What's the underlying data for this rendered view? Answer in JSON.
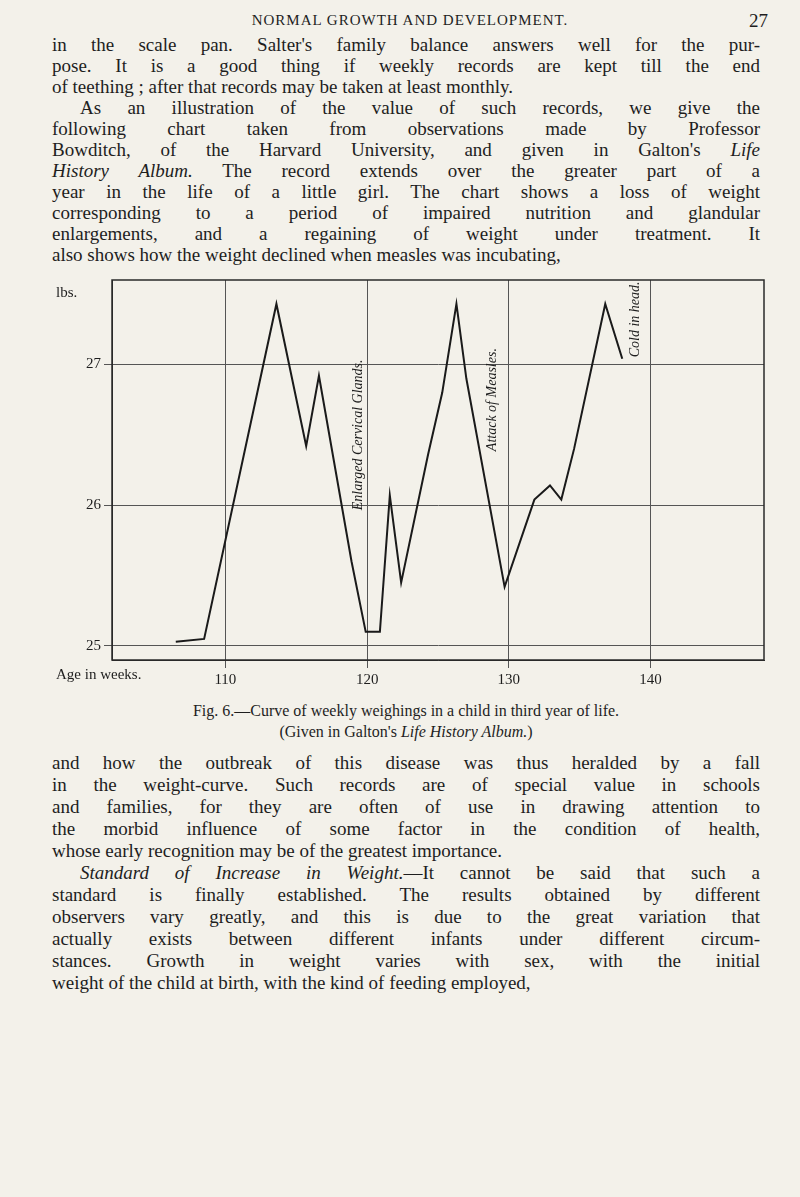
{
  "header": {
    "title": "NORMAL GROWTH AND DEVELOPMENT.",
    "page": "27"
  },
  "text_before": [
    [
      [
        "in the scale pan. Salter's family balance answers well for the pur-"
      ],
      [
        "pose. It is a good thing if weekly records are kept till the end"
      ],
      [
        "of teething ; after that records may be taken at least monthly."
      ]
    ],
    [
      [
        "As an illustration of the value of such records, we give the"
      ],
      [
        "following chart taken from observations made by Professor"
      ],
      [
        "Bowditch, of the Harvard University, and given in Galton's ",
        {
          "italic": "Life"
        }
      ],
      [
        {
          "italic": "History Album."
        },
        " The record extends over the greater part of a"
      ],
      [
        "year in the life of a little girl. The chart shows a loss of weight"
      ],
      [
        "corresponding to a period of impaired nutrition and glandular"
      ],
      [
        "enlargements, and a regaining of weight under treatment. It"
      ],
      [
        "also shows how the weight declined when measles was incubating,"
      ]
    ]
  ],
  "chart_data": {
    "type": "line",
    "y_label": "lbs.",
    "x_label": "Age in weeks.",
    "x": [
      106.5,
      108.5,
      113.6,
      115.7,
      116.6,
      118.9,
      119.9,
      120.9,
      121.6,
      122.4,
      124.3,
      125.3,
      126.3,
      127.0,
      129.7,
      131.8,
      132.9,
      133.7,
      134.6,
      136.8,
      138.0
    ],
    "values": [
      25.03,
      25.05,
      27.43,
      26.42,
      26.92,
      25.6,
      25.1,
      25.1,
      26.07,
      25.45,
      26.36,
      26.8,
      27.43,
      26.9,
      25.42,
      26.04,
      26.14,
      26.04,
      26.4,
      27.43,
      27.04
    ],
    "color": "#1a1a1a",
    "xlim": [
      102,
      148
    ],
    "xticks": [
      110,
      120,
      130,
      140
    ],
    "ylim": [
      24.9,
      27.6
    ],
    "yticks": [
      25,
      26,
      27
    ],
    "grid": true,
    "annotations": [
      {
        "text": "Enlarged Cervical Glands.",
        "x": 119.4,
        "y": 26.5
      },
      {
        "text": "Attack of Measles.",
        "x": 128.8,
        "y": 26.75
      },
      {
        "text": "Cold in head.",
        "x": 138.9,
        "y": 27.32
      }
    ]
  },
  "caption": [
    [
      "Fig. 6.—Curve of weekly weighings in a child in third year of life."
    ],
    [
      "(Given in Galton's ",
      {
        "italic": "Life History Album."
      },
      ")"
    ]
  ],
  "text_after": [
    [
      [
        "and how the outbreak of this disease was thus heralded by a fall"
      ],
      [
        "in the weight-curve. Such records are of special value in schools"
      ],
      [
        "and families, for they are often of use in drawing attention to"
      ],
      [
        "the morbid influence of some factor in the condition of health,"
      ],
      [
        "whose early recognition may be of the greatest importance."
      ]
    ],
    [
      [
        {
          "italic": "Standard of Increase in Weight."
        },
        "—It cannot be said that such a"
      ],
      [
        "standard is finally established. The results obtained by different"
      ],
      [
        "observers vary greatly, and this is due to the great variation that"
      ],
      [
        "actually exists between different infants under different circum-"
      ],
      [
        "stances. Growth in weight varies with sex, with the initial"
      ],
      [
        "weight of the child at birth, with the kind of feeding employed,"
      ]
    ]
  ]
}
